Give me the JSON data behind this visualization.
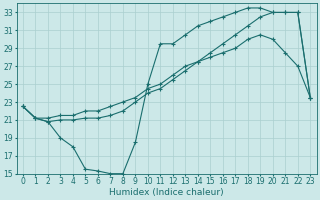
{
  "bg_color": "#cce8e8",
  "grid_color": "#aacfcf",
  "line_color": "#1a6e6e",
  "line_width": 0.8,
  "marker": "+",
  "marker_size": 3,
  "marker_lw": 0.8,
  "xlabel": "Humidex (Indice chaleur)",
  "xlabel_fontsize": 6.5,
  "tick_fontsize": 5.5,
  "xlim": [
    -0.5,
    23.5
  ],
  "ylim": [
    15,
    34
  ],
  "yticks": [
    15,
    17,
    19,
    21,
    23,
    25,
    27,
    29,
    31,
    33
  ],
  "xticks": [
    0,
    1,
    2,
    3,
    4,
    5,
    6,
    7,
    8,
    9,
    10,
    11,
    12,
    13,
    14,
    15,
    16,
    17,
    18,
    19,
    20,
    21,
    22,
    23
  ],
  "line1_x": [
    0,
    1,
    2,
    3,
    4,
    5,
    6,
    7,
    8,
    9,
    10,
    11,
    12,
    13,
    14,
    15,
    16,
    17,
    18,
    19,
    20,
    21,
    22,
    23
  ],
  "line1_y": [
    22.5,
    21.2,
    20.8,
    21.0,
    21.0,
    21.2,
    21.2,
    21.5,
    22.0,
    23.0,
    24.0,
    24.5,
    25.5,
    26.5,
    27.5,
    28.5,
    29.5,
    30.5,
    31.5,
    32.5,
    33.0,
    33.0,
    33.0,
    23.5
  ],
  "line2_x": [
    0,
    1,
    2,
    3,
    4,
    5,
    6,
    7,
    8,
    9,
    10,
    11,
    12,
    13,
    14,
    15,
    16,
    17,
    18,
    19,
    20,
    21,
    22,
    23
  ],
  "line2_y": [
    22.5,
    21.2,
    20.8,
    19.0,
    18.0,
    15.5,
    15.3,
    15.0,
    15.0,
    18.5,
    25.0,
    29.5,
    29.5,
    30.5,
    31.5,
    32.0,
    32.5,
    33.0,
    33.5,
    33.5,
    33.0,
    33.0,
    33.0,
    23.5
  ],
  "line3_x": [
    0,
    1,
    2,
    3,
    4,
    5,
    6,
    7,
    8,
    9,
    10,
    11,
    12,
    13,
    14,
    15,
    16,
    17,
    18,
    19,
    20,
    21,
    22,
    23
  ],
  "line3_y": [
    22.5,
    21.2,
    21.2,
    21.5,
    21.5,
    22.0,
    22.0,
    22.5,
    23.0,
    23.5,
    24.5,
    25.0,
    26.0,
    27.0,
    27.5,
    28.0,
    28.5,
    29.0,
    30.0,
    30.5,
    30.0,
    28.5,
    27.0,
    23.5
  ]
}
